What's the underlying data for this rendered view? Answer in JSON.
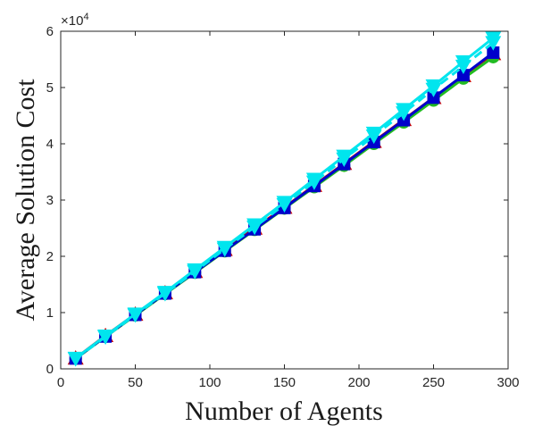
{
  "chart_data": {
    "type": "line",
    "title": "",
    "xlabel": "Number of Agents",
    "ylabel": "Average Solution Cost",
    "xlim": [
      0,
      300
    ],
    "ylim": [
      0,
      60000
    ],
    "xticks": [
      0,
      50,
      100,
      150,
      200,
      250,
      300
    ],
    "xtick_labels": [
      "0",
      "50",
      "100",
      "150",
      "200",
      "250",
      "300"
    ],
    "yticks": [
      0,
      10000,
      20000,
      30000,
      40000,
      50000,
      60000
    ],
    "ytick_labels": [
      "0",
      "1",
      "2",
      "3",
      "4",
      "5",
      "6"
    ],
    "y_exponent_base": "×10",
    "y_exponent_power": "4",
    "grid": false,
    "x": [
      10,
      30,
      50,
      70,
      90,
      110,
      130,
      150,
      170,
      190,
      210,
      230,
      250,
      270,
      290
    ],
    "series": [
      {
        "marker": "triangle-up",
        "color": "#cc0000",
        "values": [
          1900,
          5900,
          9700,
          13500,
          17300,
          21200,
          25000,
          28700,
          32600,
          36500,
          40400,
          44300,
          48200,
          52100,
          56000
        ]
      },
      {
        "marker": "circle",
        "color": "#22bb22",
        "values": [
          1800,
          5700,
          9500,
          13300,
          17100,
          20900,
          24700,
          28500,
          32300,
          36100,
          40000,
          43800,
          47700,
          51600,
          55400
        ]
      },
      {
        "marker": "square",
        "color": "#0000cc",
        "values": [
          1850,
          5750,
          9600,
          13400,
          17200,
          21000,
          24800,
          28600,
          32500,
          36400,
          40300,
          44200,
          48200,
          52200,
          56200
        ]
      },
      {
        "marker": "triangle-down",
        "color": "#00e5ee",
        "dashed": true,
        "values": [
          1800,
          5700,
          9600,
          13400,
          17300,
          21300,
          25200,
          29200,
          33200,
          37300,
          41400,
          45500,
          49700,
          53800,
          58000
        ]
      },
      {
        "marker": "triangle-down",
        "color": "#00e5ee",
        "values": [
          1900,
          5850,
          9750,
          13600,
          17600,
          21600,
          25600,
          29600,
          33700,
          37800,
          41900,
          46100,
          50300,
          54600,
          58800
        ]
      }
    ]
  }
}
